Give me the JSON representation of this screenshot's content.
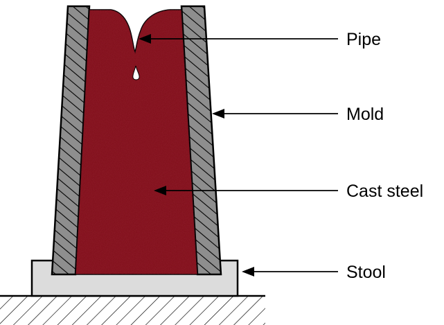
{
  "labels": {
    "pipe": "Pipe",
    "mold": "Mold",
    "cast_steel": "Cast steel",
    "stool": "Stool"
  },
  "colors": {
    "cast_steel": "#7e0f17",
    "mold_wall": "#8e8e8e",
    "stool": "#dcdcdc",
    "outline": "#000000",
    "background": "#ffffff"
  }
}
